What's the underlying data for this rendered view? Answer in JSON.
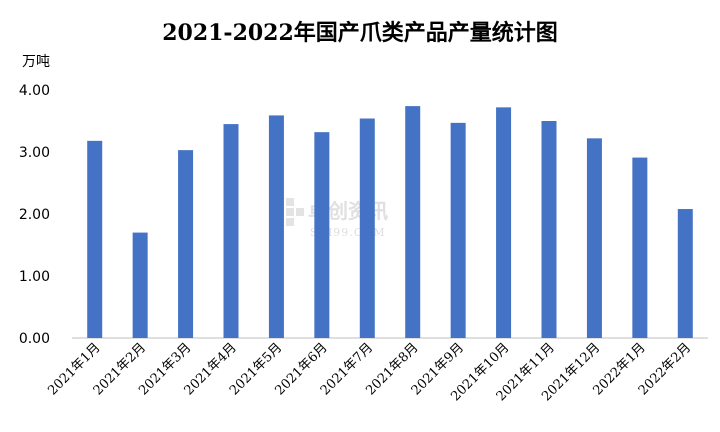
{
  "chart_data": {
    "type": "bar",
    "title": "2021-2022年国产爪类产品产量统计图",
    "ylabel": "万吨",
    "xlabel": "",
    "ylim": [
      0,
      4
    ],
    "yticks": [
      "0.00",
      "1.00",
      "2.00",
      "3.00",
      "4.00"
    ],
    "categories": [
      "2021年1月",
      "2021年2月",
      "2021年3月",
      "2021年4月",
      "2021年5月",
      "2021年6月",
      "2021年7月",
      "2021年8月",
      "2021年9月",
      "2021年10月",
      "2021年11月",
      "2021年12月",
      "2022年1月",
      "2022年2月"
    ],
    "values": [
      3.18,
      1.7,
      3.03,
      3.45,
      3.59,
      3.32,
      3.54,
      3.74,
      3.47,
      3.72,
      3.5,
      3.22,
      2.91,
      2.08
    ],
    "grid": false,
    "legend": "none",
    "bar_color": "#4472C4"
  },
  "watermark": {
    "text": "卓创资讯",
    "sub": "SCI99.COM"
  }
}
